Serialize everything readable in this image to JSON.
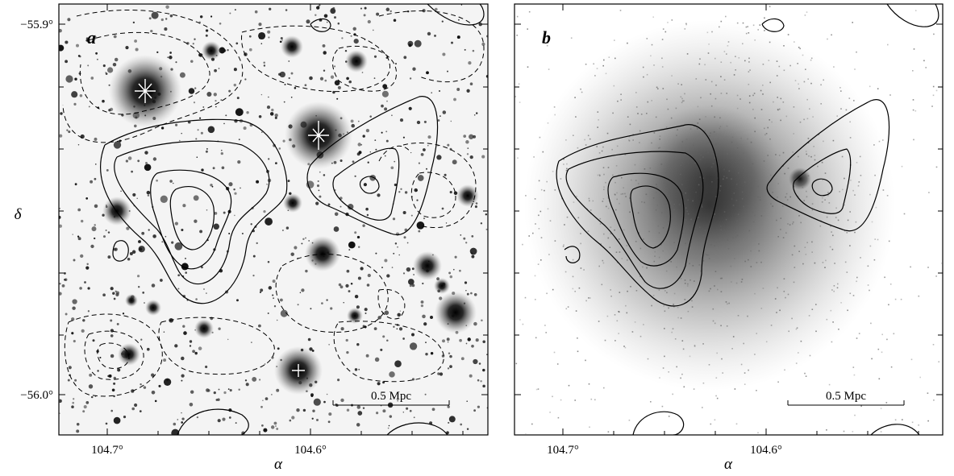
{
  "panels": [
    {
      "label": "a",
      "xlabel": "α",
      "ylabel": "δ",
      "x_ticks": [
        "104.7°",
        "104.6°"
      ],
      "y_ticks": [
        "−55.9°",
        "−56.0°"
      ],
      "scale_bar": "0.5 Mpc",
      "contours": "solid and dashed"
    },
    {
      "label": "b",
      "xlabel": "α",
      "x_ticks": [
        "104.7°",
        "104.6°"
      ],
      "scale_bar": "0.5 Mpc",
      "contours": "solid"
    }
  ],
  "colors": {
    "ink": "#000000",
    "background": "#ffffff"
  }
}
